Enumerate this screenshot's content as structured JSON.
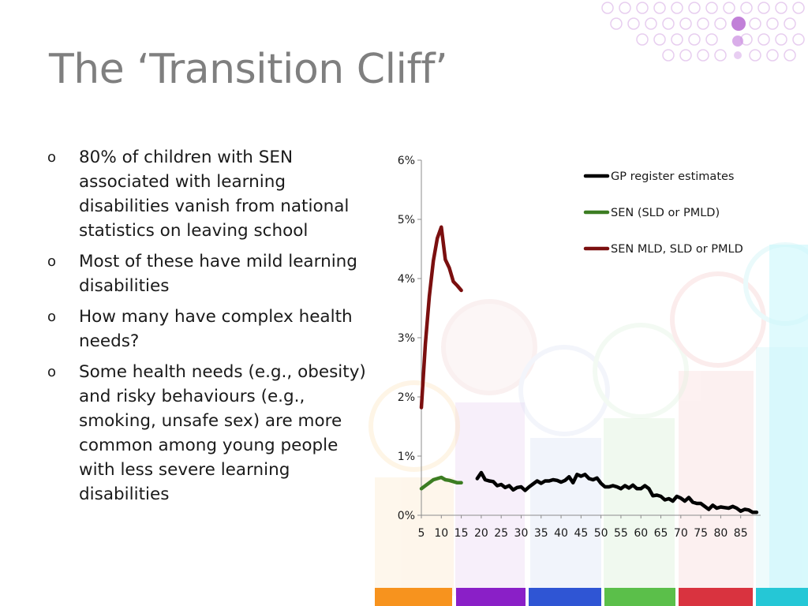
{
  "slide": {
    "title": "The ‘Transition Cliff’",
    "bullet_marker": "o",
    "bullets": [
      "80% of children with SEN associated with learning disabilities vanish from national statistics on leaving school",
      "Most of these have mild learning disabilities",
      "How many have complex health needs?",
      "Some health needs (e.g., obesity) and risky behaviours (e.g., smoking, unsafe sex) are more common among young people with less severe learning disabilities"
    ]
  },
  "chart_data": {
    "type": "line",
    "title": "",
    "xlabel": "",
    "ylabel": "",
    "xlim": [
      5,
      90
    ],
    "ylim": [
      0,
      6
    ],
    "y_ticks": [
      "0%",
      "1%",
      "2%",
      "3%",
      "4%",
      "5%",
      "6%"
    ],
    "x_ticks": [
      "5",
      "10",
      "15",
      "20",
      "25",
      "30",
      "35",
      "40",
      "45",
      "50",
      "55",
      "60",
      "65",
      "70",
      "75",
      "80",
      "85"
    ],
    "grid": false,
    "legend_position": "top-right",
    "series": [
      {
        "name": "GP register estimates",
        "color": "#000000",
        "x": [
          19,
          20,
          21,
          22,
          23,
          24,
          25,
          26,
          27,
          28,
          29,
          30,
          31,
          32,
          33,
          34,
          35,
          36,
          37,
          38,
          39,
          40,
          41,
          42,
          43,
          44,
          45,
          46,
          47,
          48,
          49,
          50,
          51,
          52,
          53,
          54,
          55,
          56,
          57,
          58,
          59,
          60,
          61,
          62,
          63,
          64,
          65,
          66,
          67,
          68,
          69,
          70,
          71,
          72,
          73,
          74,
          75,
          76,
          77,
          78,
          79,
          80,
          81,
          82,
          83,
          84,
          85,
          86,
          87,
          88,
          89
        ],
        "values": [
          0.62,
          0.72,
          0.6,
          0.58,
          0.57,
          0.5,
          0.52,
          0.47,
          0.5,
          0.43,
          0.47,
          0.48,
          0.42,
          0.48,
          0.53,
          0.58,
          0.54,
          0.58,
          0.58,
          0.6,
          0.59,
          0.56,
          0.59,
          0.65,
          0.55,
          0.69,
          0.66,
          0.69,
          0.62,
          0.6,
          0.63,
          0.54,
          0.48,
          0.48,
          0.5,
          0.48,
          0.45,
          0.5,
          0.46,
          0.51,
          0.45,
          0.45,
          0.5,
          0.45,
          0.33,
          0.34,
          0.32,
          0.26,
          0.28,
          0.24,
          0.32,
          0.29,
          0.24,
          0.3,
          0.22,
          0.2,
          0.2,
          0.15,
          0.1,
          0.17,
          0.12,
          0.14,
          0.13,
          0.12,
          0.15,
          0.12,
          0.07,
          0.1,
          0.09,
          0.05,
          0.05
        ]
      },
      {
        "name": "SEN (SLD or PMLD)",
        "color": "#3c7d22",
        "x": [
          5,
          6,
          7,
          8,
          9,
          10,
          11,
          12,
          13,
          14,
          15
        ],
        "values": [
          0.45,
          0.5,
          0.55,
          0.6,
          0.62,
          0.64,
          0.6,
          0.59,
          0.57,
          0.55,
          0.55
        ]
      },
      {
        "name": "SEN MLD, SLD or PMLD",
        "color": "#7b0f0f",
        "x": [
          5,
          6,
          7,
          8,
          9,
          10,
          11,
          12,
          13,
          14,
          15
        ],
        "values": [
          1.82,
          2.9,
          3.7,
          4.3,
          4.68,
          4.87,
          4.32,
          4.18,
          3.95,
          3.88,
          3.8
        ]
      }
    ]
  }
}
